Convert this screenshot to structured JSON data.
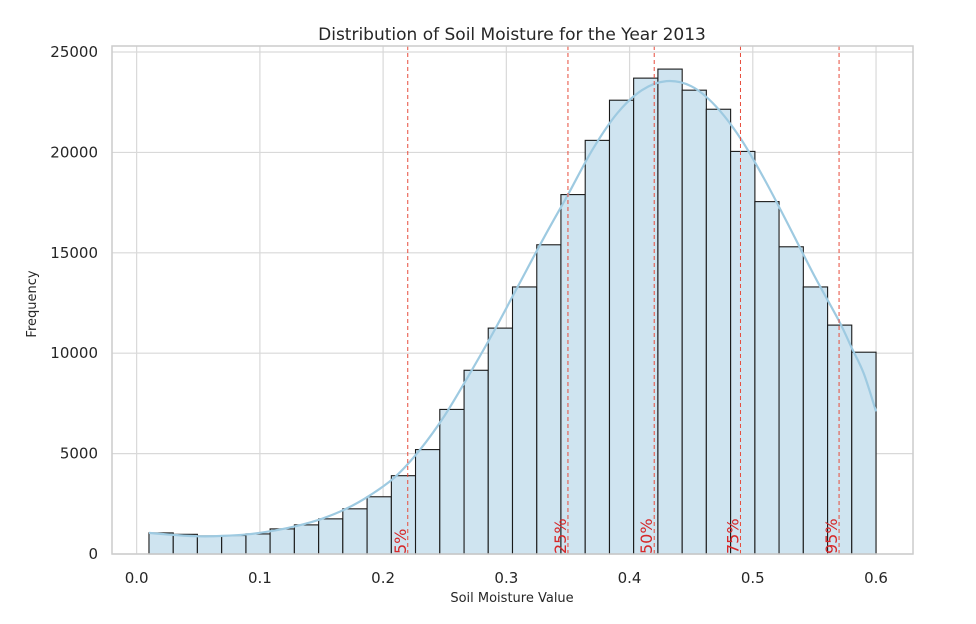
{
  "chart_data": {
    "type": "bar",
    "title": "Distribution of Soil Moisture for the Year 2013",
    "xlabel": "Soil Moisture Value",
    "ylabel": "Frequency",
    "xlim": [
      -0.02,
      0.63
    ],
    "ylim": [
      0,
      25300
    ],
    "x_ticks": [
      0.0,
      0.1,
      0.2,
      0.3,
      0.4,
      0.5,
      0.6
    ],
    "x_tick_labels": [
      "0.0",
      "0.1",
      "0.2",
      "0.3",
      "0.4",
      "0.5",
      "0.6"
    ],
    "y_ticks": [
      0,
      5000,
      10000,
      15000,
      20000,
      25000
    ],
    "y_tick_labels": [
      "0",
      "5000",
      "10000",
      "15000",
      "20000",
      "25000"
    ],
    "grid": true,
    "bar_color": "#cfe4f0",
    "bar_edge_color": "#1a1a1a",
    "kde_color": "#9ecae1",
    "bins": {
      "edges": [
        0.01,
        0.0297,
        0.0493,
        0.069,
        0.0887,
        0.1083,
        0.128,
        0.1477,
        0.1673,
        0.187,
        0.2067,
        0.2263,
        0.246,
        0.2657,
        0.2853,
        0.305,
        0.3247,
        0.3443,
        0.364,
        0.3837,
        0.4033,
        0.423,
        0.4427,
        0.4623,
        0.482,
        0.5017,
        0.5213,
        0.541,
        0.5607,
        0.5803,
        0.6
      ],
      "counts": [
        1050,
        980,
        900,
        920,
        1000,
        1250,
        1450,
        1750,
        2250,
        2850,
        3900,
        5200,
        7200,
        9150,
        11250,
        13300,
        15400,
        17900,
        20600,
        22600,
        23700,
        24150,
        23100,
        22150,
        20050,
        17550,
        15300,
        13300,
        11400,
        10050
      ]
    },
    "kde": {
      "x": [
        0.01,
        0.03,
        0.05,
        0.07,
        0.09,
        0.11,
        0.13,
        0.15,
        0.17,
        0.19,
        0.21,
        0.23,
        0.25,
        0.27,
        0.29,
        0.31,
        0.33,
        0.35,
        0.37,
        0.39,
        0.41,
        0.43,
        0.45,
        0.47,
        0.49,
        0.51,
        0.53,
        0.55,
        0.57,
        0.58,
        0.59,
        0.6
      ],
      "y": [
        1050,
        950,
        880,
        900,
        980,
        1150,
        1400,
        1750,
        2250,
        2950,
        3850,
        5200,
        6900,
        8950,
        11100,
        13400,
        15700,
        17900,
        20150,
        21950,
        23100,
        23550,
        23300,
        22300,
        20700,
        18600,
        16250,
        13850,
        11600,
        10300,
        9000,
        7100
      ]
    },
    "percentiles": [
      {
        "label": "5%",
        "value": 0.22
      },
      {
        "label": "25%",
        "value": 0.35
      },
      {
        "label": "50%",
        "value": 0.42
      },
      {
        "label": "75%",
        "value": 0.49
      },
      {
        "label": "95%",
        "value": 0.57
      }
    ],
    "percentile_color": "#e74c3c"
  }
}
